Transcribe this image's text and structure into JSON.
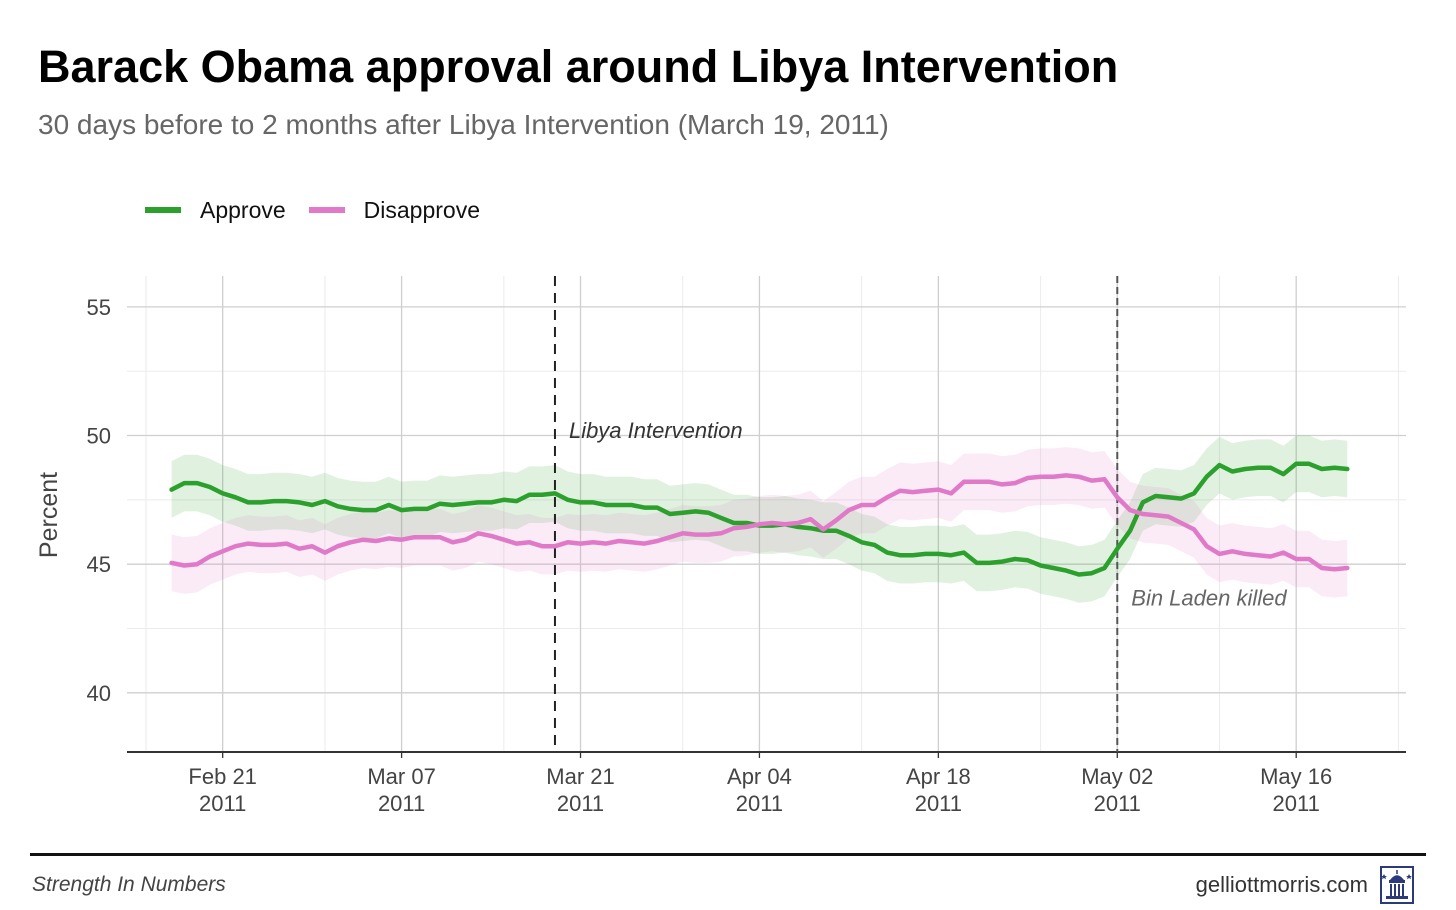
{
  "chart_data": {
    "type": "line",
    "title": "Barack Obama approval around Libya Intervention",
    "subtitle": "30 days before to 2 months after Libya Intervention (March 19, 2011)",
    "ylabel": "Percent",
    "xlabel": "",
    "ylim": [
      37.7,
      56.2
    ],
    "y_ticks": [
      40,
      45,
      50,
      55
    ],
    "x_ticks": [
      {
        "date": "2011-02-21",
        "label": "Feb 21",
        "year": "2011"
      },
      {
        "date": "2011-03-07",
        "label": "Mar 07",
        "year": "2011"
      },
      {
        "date": "2011-03-21",
        "label": "Mar 21",
        "year": "2011"
      },
      {
        "date": "2011-04-04",
        "label": "Apr 04",
        "year": "2011"
      },
      {
        "date": "2011-04-18",
        "label": "Apr 18",
        "year": "2011"
      },
      {
        "date": "2011-05-02",
        "label": "May 02",
        "year": "2011"
      },
      {
        "date": "2011-05-16",
        "label": "May 16",
        "year": "2011"
      }
    ],
    "x_start": "2011-02-17",
    "series": [
      {
        "name": "Approve",
        "color": "#2ca02c",
        "values": [
          [
            "2011-02-17",
            47.9
          ],
          [
            "2011-02-18",
            48.15
          ],
          [
            "2011-02-19",
            48.15
          ],
          [
            "2011-02-20",
            48.0
          ],
          [
            "2011-02-21",
            47.75
          ],
          [
            "2011-02-22",
            47.6
          ],
          [
            "2011-02-23",
            47.4
          ],
          [
            "2011-02-24",
            47.4
          ],
          [
            "2011-02-25",
            47.45
          ],
          [
            "2011-02-26",
            47.45
          ],
          [
            "2011-02-27",
            47.4
          ],
          [
            "2011-02-28",
            47.3
          ],
          [
            "2011-03-01",
            47.45
          ],
          [
            "2011-03-02",
            47.25
          ],
          [
            "2011-03-03",
            47.15
          ],
          [
            "2011-03-04",
            47.1
          ],
          [
            "2011-03-05",
            47.1
          ],
          [
            "2011-03-06",
            47.3
          ],
          [
            "2011-03-07",
            47.1
          ],
          [
            "2011-03-08",
            47.15
          ],
          [
            "2011-03-09",
            47.15
          ],
          [
            "2011-03-10",
            47.35
          ],
          [
            "2011-03-11",
            47.3
          ],
          [
            "2011-03-12",
            47.35
          ],
          [
            "2011-03-13",
            47.4
          ],
          [
            "2011-03-14",
            47.4
          ],
          [
            "2011-03-15",
            47.5
          ],
          [
            "2011-03-16",
            47.45
          ],
          [
            "2011-03-17",
            47.7
          ],
          [
            "2011-03-18",
            47.7
          ],
          [
            "2011-03-19",
            47.75
          ],
          [
            "2011-03-20",
            47.5
          ],
          [
            "2011-03-21",
            47.4
          ],
          [
            "2011-03-22",
            47.4
          ],
          [
            "2011-03-23",
            47.3
          ],
          [
            "2011-03-24",
            47.3
          ],
          [
            "2011-03-25",
            47.3
          ],
          [
            "2011-03-26",
            47.2
          ],
          [
            "2011-03-27",
            47.2
          ],
          [
            "2011-03-28",
            46.95
          ],
          [
            "2011-03-29",
            47.0
          ],
          [
            "2011-03-30",
            47.05
          ],
          [
            "2011-03-31",
            47.0
          ],
          [
            "2011-04-01",
            46.8
          ],
          [
            "2011-04-02",
            46.6
          ],
          [
            "2011-04-03",
            46.6
          ],
          [
            "2011-04-04",
            46.5
          ],
          [
            "2011-04-05",
            46.5
          ],
          [
            "2011-04-06",
            46.55
          ],
          [
            "2011-04-07",
            46.45
          ],
          [
            "2011-04-08",
            46.4
          ],
          [
            "2011-04-09",
            46.3
          ],
          [
            "2011-04-10",
            46.3
          ],
          [
            "2011-04-11",
            46.1
          ],
          [
            "2011-04-12",
            45.85
          ],
          [
            "2011-04-13",
            45.75
          ],
          [
            "2011-04-14",
            45.45
          ],
          [
            "2011-04-15",
            45.35
          ],
          [
            "2011-04-16",
            45.35
          ],
          [
            "2011-04-17",
            45.4
          ],
          [
            "2011-04-18",
            45.4
          ],
          [
            "2011-04-19",
            45.35
          ],
          [
            "2011-04-20",
            45.45
          ],
          [
            "2011-04-21",
            45.05
          ],
          [
            "2011-04-22",
            45.05
          ],
          [
            "2011-04-23",
            45.1
          ],
          [
            "2011-04-24",
            45.2
          ],
          [
            "2011-04-25",
            45.15
          ],
          [
            "2011-04-26",
            44.95
          ],
          [
            "2011-04-27",
            44.85
          ],
          [
            "2011-04-28",
            44.75
          ],
          [
            "2011-04-29",
            44.6
          ],
          [
            "2011-04-30",
            44.65
          ],
          [
            "2011-05-01",
            44.85
          ],
          [
            "2011-05-02",
            45.6
          ],
          [
            "2011-05-03",
            46.3
          ],
          [
            "2011-05-04",
            47.4
          ],
          [
            "2011-05-05",
            47.65
          ],
          [
            "2011-05-06",
            47.6
          ],
          [
            "2011-05-07",
            47.55
          ],
          [
            "2011-05-08",
            47.75
          ],
          [
            "2011-05-09",
            48.4
          ],
          [
            "2011-05-10",
            48.85
          ],
          [
            "2011-05-11",
            48.6
          ],
          [
            "2011-05-12",
            48.7
          ],
          [
            "2011-05-13",
            48.75
          ],
          [
            "2011-05-14",
            48.75
          ],
          [
            "2011-05-15",
            48.5
          ],
          [
            "2011-05-16",
            48.9
          ],
          [
            "2011-05-17",
            48.9
          ],
          [
            "2011-05-18",
            48.7
          ],
          [
            "2011-05-19",
            48.75
          ],
          [
            "2011-05-20",
            48.7
          ]
        ]
      },
      {
        "name": "Disapprove",
        "color": "#e07ac8",
        "values": [
          [
            "2011-02-17",
            45.05
          ],
          [
            "2011-02-18",
            44.95
          ],
          [
            "2011-02-19",
            45.0
          ],
          [
            "2011-02-20",
            45.3
          ],
          [
            "2011-02-21",
            45.5
          ],
          [
            "2011-02-22",
            45.7
          ],
          [
            "2011-02-23",
            45.8
          ],
          [
            "2011-02-24",
            45.75
          ],
          [
            "2011-02-25",
            45.75
          ],
          [
            "2011-02-26",
            45.8
          ],
          [
            "2011-02-27",
            45.6
          ],
          [
            "2011-02-28",
            45.7
          ],
          [
            "2011-03-01",
            45.45
          ],
          [
            "2011-03-02",
            45.7
          ],
          [
            "2011-03-03",
            45.85
          ],
          [
            "2011-03-04",
            45.95
          ],
          [
            "2011-03-05",
            45.9
          ],
          [
            "2011-03-06",
            46.0
          ],
          [
            "2011-03-07",
            45.95
          ],
          [
            "2011-03-08",
            46.05
          ],
          [
            "2011-03-09",
            46.05
          ],
          [
            "2011-03-10",
            46.05
          ],
          [
            "2011-03-11",
            45.85
          ],
          [
            "2011-03-12",
            45.95
          ],
          [
            "2011-03-13",
            46.2
          ],
          [
            "2011-03-14",
            46.1
          ],
          [
            "2011-03-15",
            45.95
          ],
          [
            "2011-03-16",
            45.8
          ],
          [
            "2011-03-17",
            45.85
          ],
          [
            "2011-03-18",
            45.7
          ],
          [
            "2011-03-19",
            45.7
          ],
          [
            "2011-03-20",
            45.85
          ],
          [
            "2011-03-21",
            45.8
          ],
          [
            "2011-03-22",
            45.85
          ],
          [
            "2011-03-23",
            45.8
          ],
          [
            "2011-03-24",
            45.9
          ],
          [
            "2011-03-25",
            45.85
          ],
          [
            "2011-03-26",
            45.8
          ],
          [
            "2011-03-27",
            45.9
          ],
          [
            "2011-03-28",
            46.05
          ],
          [
            "2011-03-29",
            46.2
          ],
          [
            "2011-03-30",
            46.15
          ],
          [
            "2011-03-31",
            46.15
          ],
          [
            "2011-04-01",
            46.2
          ],
          [
            "2011-04-02",
            46.4
          ],
          [
            "2011-04-03",
            46.45
          ],
          [
            "2011-04-04",
            46.55
          ],
          [
            "2011-04-05",
            46.6
          ],
          [
            "2011-04-06",
            46.55
          ],
          [
            "2011-04-07",
            46.6
          ],
          [
            "2011-04-08",
            46.75
          ],
          [
            "2011-04-09",
            46.35
          ],
          [
            "2011-04-10",
            46.7
          ],
          [
            "2011-04-11",
            47.1
          ],
          [
            "2011-04-12",
            47.3
          ],
          [
            "2011-04-13",
            47.3
          ],
          [
            "2011-04-14",
            47.6
          ],
          [
            "2011-04-15",
            47.85
          ],
          [
            "2011-04-16",
            47.8
          ],
          [
            "2011-04-17",
            47.85
          ],
          [
            "2011-04-18",
            47.9
          ],
          [
            "2011-04-19",
            47.75
          ],
          [
            "2011-04-20",
            48.2
          ],
          [
            "2011-04-21",
            48.2
          ],
          [
            "2011-04-22",
            48.2
          ],
          [
            "2011-04-23",
            48.1
          ],
          [
            "2011-04-24",
            48.15
          ],
          [
            "2011-04-25",
            48.35
          ],
          [
            "2011-04-26",
            48.4
          ],
          [
            "2011-04-27",
            48.4
          ],
          [
            "2011-04-28",
            48.45
          ],
          [
            "2011-04-29",
            48.4
          ],
          [
            "2011-04-30",
            48.25
          ],
          [
            "2011-05-01",
            48.3
          ],
          [
            "2011-05-02",
            47.6
          ],
          [
            "2011-05-03",
            47.1
          ],
          [
            "2011-05-04",
            46.95
          ],
          [
            "2011-05-05",
            46.9
          ],
          [
            "2011-05-06",
            46.85
          ],
          [
            "2011-05-07",
            46.6
          ],
          [
            "2011-05-08",
            46.35
          ],
          [
            "2011-05-09",
            45.7
          ],
          [
            "2011-05-10",
            45.4
          ],
          [
            "2011-05-11",
            45.5
          ],
          [
            "2011-05-12",
            45.4
          ],
          [
            "2011-05-13",
            45.35
          ],
          [
            "2011-05-14",
            45.3
          ],
          [
            "2011-05-15",
            45.45
          ],
          [
            "2011-05-16",
            45.2
          ],
          [
            "2011-05-17",
            45.2
          ],
          [
            "2011-05-18",
            44.85
          ],
          [
            "2011-05-19",
            44.8
          ],
          [
            "2011-05-20",
            44.85
          ]
        ]
      }
    ],
    "band_halfwidth": 1.1,
    "annotations": [
      {
        "date": "2011-03-19",
        "text": "Libya Intervention",
        "y": 49.9,
        "line_color": "#222222",
        "text_color": "#333333"
      },
      {
        "date": "2011-05-02",
        "text": "Bin Laden killed",
        "y": 43.4,
        "line_color": "#555555",
        "text_color": "#666666"
      }
    ],
    "legend_position": "top-left",
    "grid": true
  },
  "legend": [
    {
      "label": "Approve",
      "color": "#2ca02c"
    },
    {
      "label": "Disapprove",
      "color": "#e07ac8"
    }
  ],
  "footer": {
    "source": "Strength In Numbers",
    "site": "gelliottmorris.com"
  }
}
